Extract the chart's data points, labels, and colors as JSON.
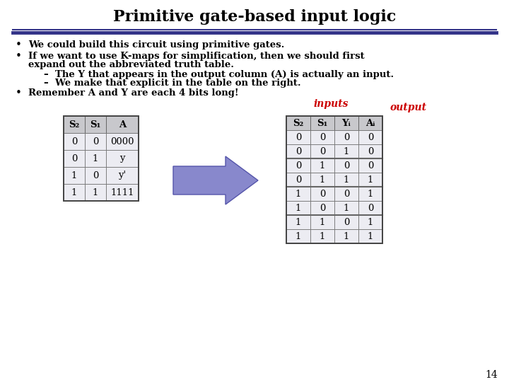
{
  "title": "Primitive gate-based input logic",
  "title_fontsize": 16,
  "background_color": "#ffffff",
  "title_color": "#000000",
  "bullet_font": 9.5,
  "bullet_points": [
    "We could build this circuit using primitive gates.",
    "Remember A and Y are each 4 bits long!"
  ],
  "bullet2_line1": "If we want to use K-maps for simplification, then we should first",
  "bullet2_line2": "expand out the abbreviated truth table.",
  "sub_bullets": [
    "–  The Y that appears in the output column (A) is actually an input.",
    "–  We make that explicit in the table on the right."
  ],
  "inputs_label": "inputs",
  "output_label": "output",
  "inputs_color": "#cc0000",
  "output_color": "#cc0000",
  "left_table_headers": [
    "S₂",
    "S₁",
    "A"
  ],
  "left_table_data": [
    [
      "0",
      "0",
      "0000"
    ],
    [
      "0",
      "1",
      "y"
    ],
    [
      "1",
      "0",
      "y'"
    ],
    [
      "1",
      "1",
      "1111"
    ]
  ],
  "right_table_headers": [
    "S₂",
    "S₁",
    "Yᵢ",
    "Aᵢ"
  ],
  "right_table_data": [
    [
      "0",
      "0",
      "0",
      "0"
    ],
    [
      "0",
      "0",
      "1",
      "0"
    ],
    [
      "0",
      "1",
      "0",
      "0"
    ],
    [
      "0",
      "1",
      "1",
      "1"
    ],
    [
      "1",
      "0",
      "0",
      "1"
    ],
    [
      "1",
      "0",
      "1",
      "0"
    ],
    [
      "1",
      "1",
      "0",
      "1"
    ],
    [
      "1",
      "1",
      "1",
      "1"
    ]
  ],
  "table_header_bg": "#c8c8cc",
  "table_row_bg": "#ececf2",
  "table_border_color": "#666666",
  "page_number": "14",
  "divider_color": "#333388",
  "arrow_color": "#8888cc",
  "arrow_edge_color": "#5555aa"
}
